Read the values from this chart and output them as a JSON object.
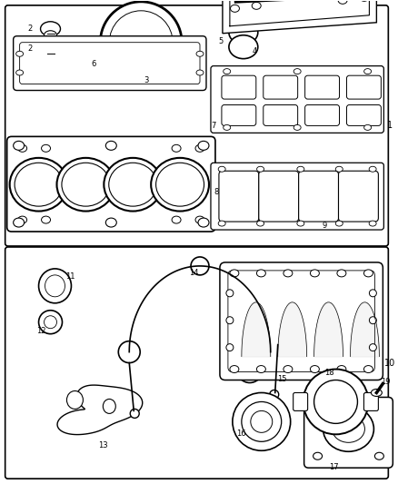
{
  "background_color": "#ffffff",
  "line_color": "#000000",
  "fig_width": 4.38,
  "fig_height": 5.33,
  "dpi": 100
}
